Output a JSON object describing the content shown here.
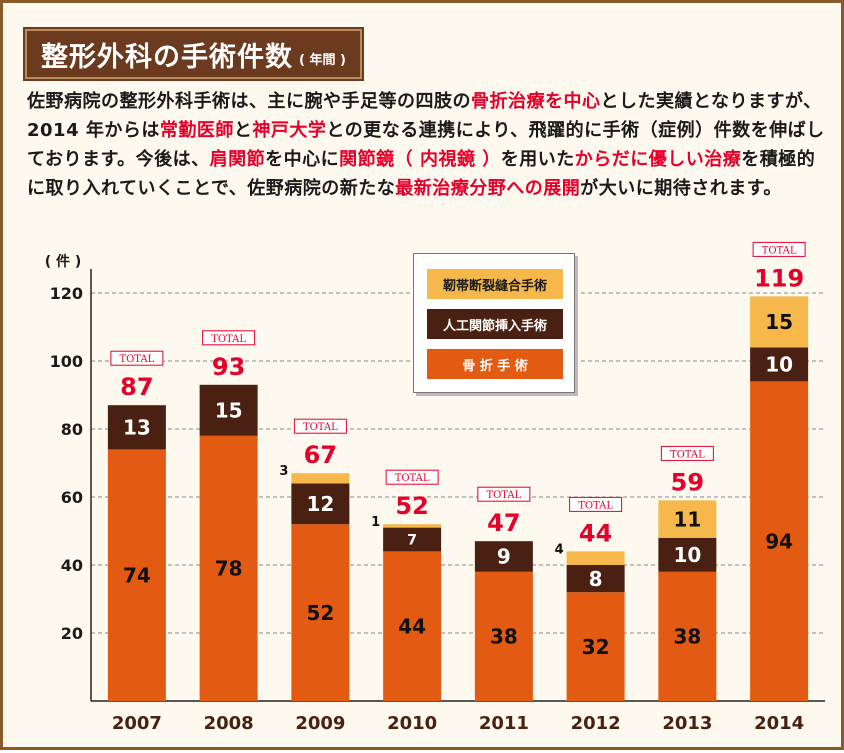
{
  "header": {
    "title": "整形外科の手術件数",
    "subtitle": "( 年間 )"
  },
  "intro": [
    {
      "t": "佐野病院の整形外科手術は、主に腕や手足等の四肢の",
      "hl": false
    },
    {
      "t": "骨折治療を中心",
      "hl": true
    },
    {
      "t": "とした実績となりますが、2014 年からは",
      "hl": false
    },
    {
      "t": "常勤医師",
      "hl": true
    },
    {
      "t": "と",
      "hl": false
    },
    {
      "t": "神戸大学",
      "hl": true
    },
    {
      "t": "との更なる連携により、飛躍的に手術（症例）件数を伸ばしております。今後は、",
      "hl": false
    },
    {
      "t": "肩関節",
      "hl": true
    },
    {
      "t": "を中心に",
      "hl": false
    },
    {
      "t": "関節鏡（ 内視鏡 ）",
      "hl": true
    },
    {
      "t": "を用いた",
      "hl": false
    },
    {
      "t": "からだに優しい治療",
      "hl": true
    },
    {
      "t": "を積極的に取り入れていくことで、佐野病院の新たな",
      "hl": false
    },
    {
      "t": "最新治療分野への展開",
      "hl": true
    },
    {
      "t": "が大いに期待されます。",
      "hl": false
    }
  ],
  "colors": {
    "fracture": "#e35a12",
    "joint": "#4a2012",
    "ligament": "#f6b84b",
    "total": "#e4002b",
    "year": "#4a2012",
    "grid": "#888888",
    "title_bg": "#6b3a1f"
  },
  "legend": [
    {
      "label": "靭帯断裂縫合手術",
      "series": "ligament"
    },
    {
      "label": "人工関節挿入手術",
      "series": "joint"
    },
    {
      "label": "骨 折 手 術",
      "series": "fracture"
    }
  ],
  "chart_data": {
    "type": "bar",
    "stacked": true,
    "ylabel": "( 件 )",
    "ylim": [
      0,
      120
    ],
    "yticks": [
      20,
      40,
      60,
      80,
      100,
      120
    ],
    "grid": true,
    "legend_position": "top-center",
    "categories": [
      "2007",
      "2008",
      "2009",
      "2010",
      "2011",
      "2012",
      "2013",
      "2014"
    ],
    "series": [
      {
        "name": "骨 折 手 術",
        "key": "fracture",
        "values": [
          74,
          78,
          52,
          44,
          38,
          32,
          38,
          94
        ]
      },
      {
        "name": "人工関節挿入手術",
        "key": "joint",
        "values": [
          13,
          15,
          12,
          7,
          9,
          8,
          10,
          10
        ]
      },
      {
        "name": "靭帯断裂縫合手術",
        "key": "ligament",
        "values": [
          0,
          0,
          3,
          1,
          0,
          4,
          11,
          15
        ]
      }
    ],
    "total_badge": "TOTAL",
    "totals": [
      87,
      93,
      67,
      52,
      47,
      44,
      59,
      119
    ]
  }
}
